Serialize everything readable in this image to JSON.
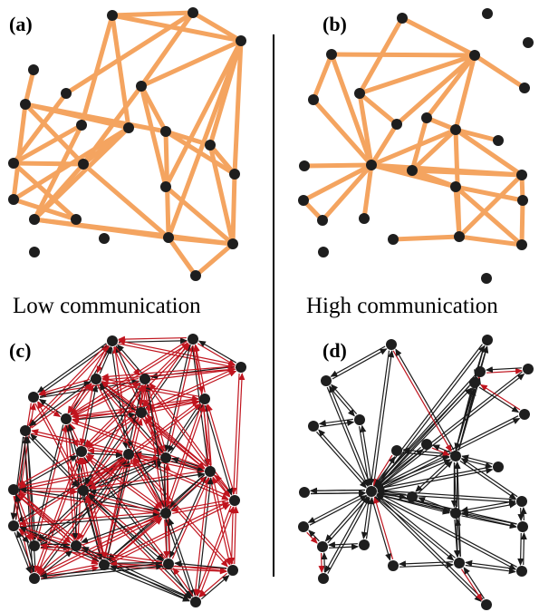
{
  "panels": [
    {
      "label": "(a)"
    },
    {
      "label": "(b)"
    },
    {
      "label": "(c)"
    },
    {
      "label": "(d)"
    }
  ],
  "captions": {
    "left": "Low communication",
    "right": "High communication"
  },
  "colors": {
    "edge_undirected": "#F4A460",
    "node": "#1e1e1e",
    "arrow_black": "#1a1a1a",
    "arrow_red": "#c0141e",
    "divider": "#000000"
  }
}
